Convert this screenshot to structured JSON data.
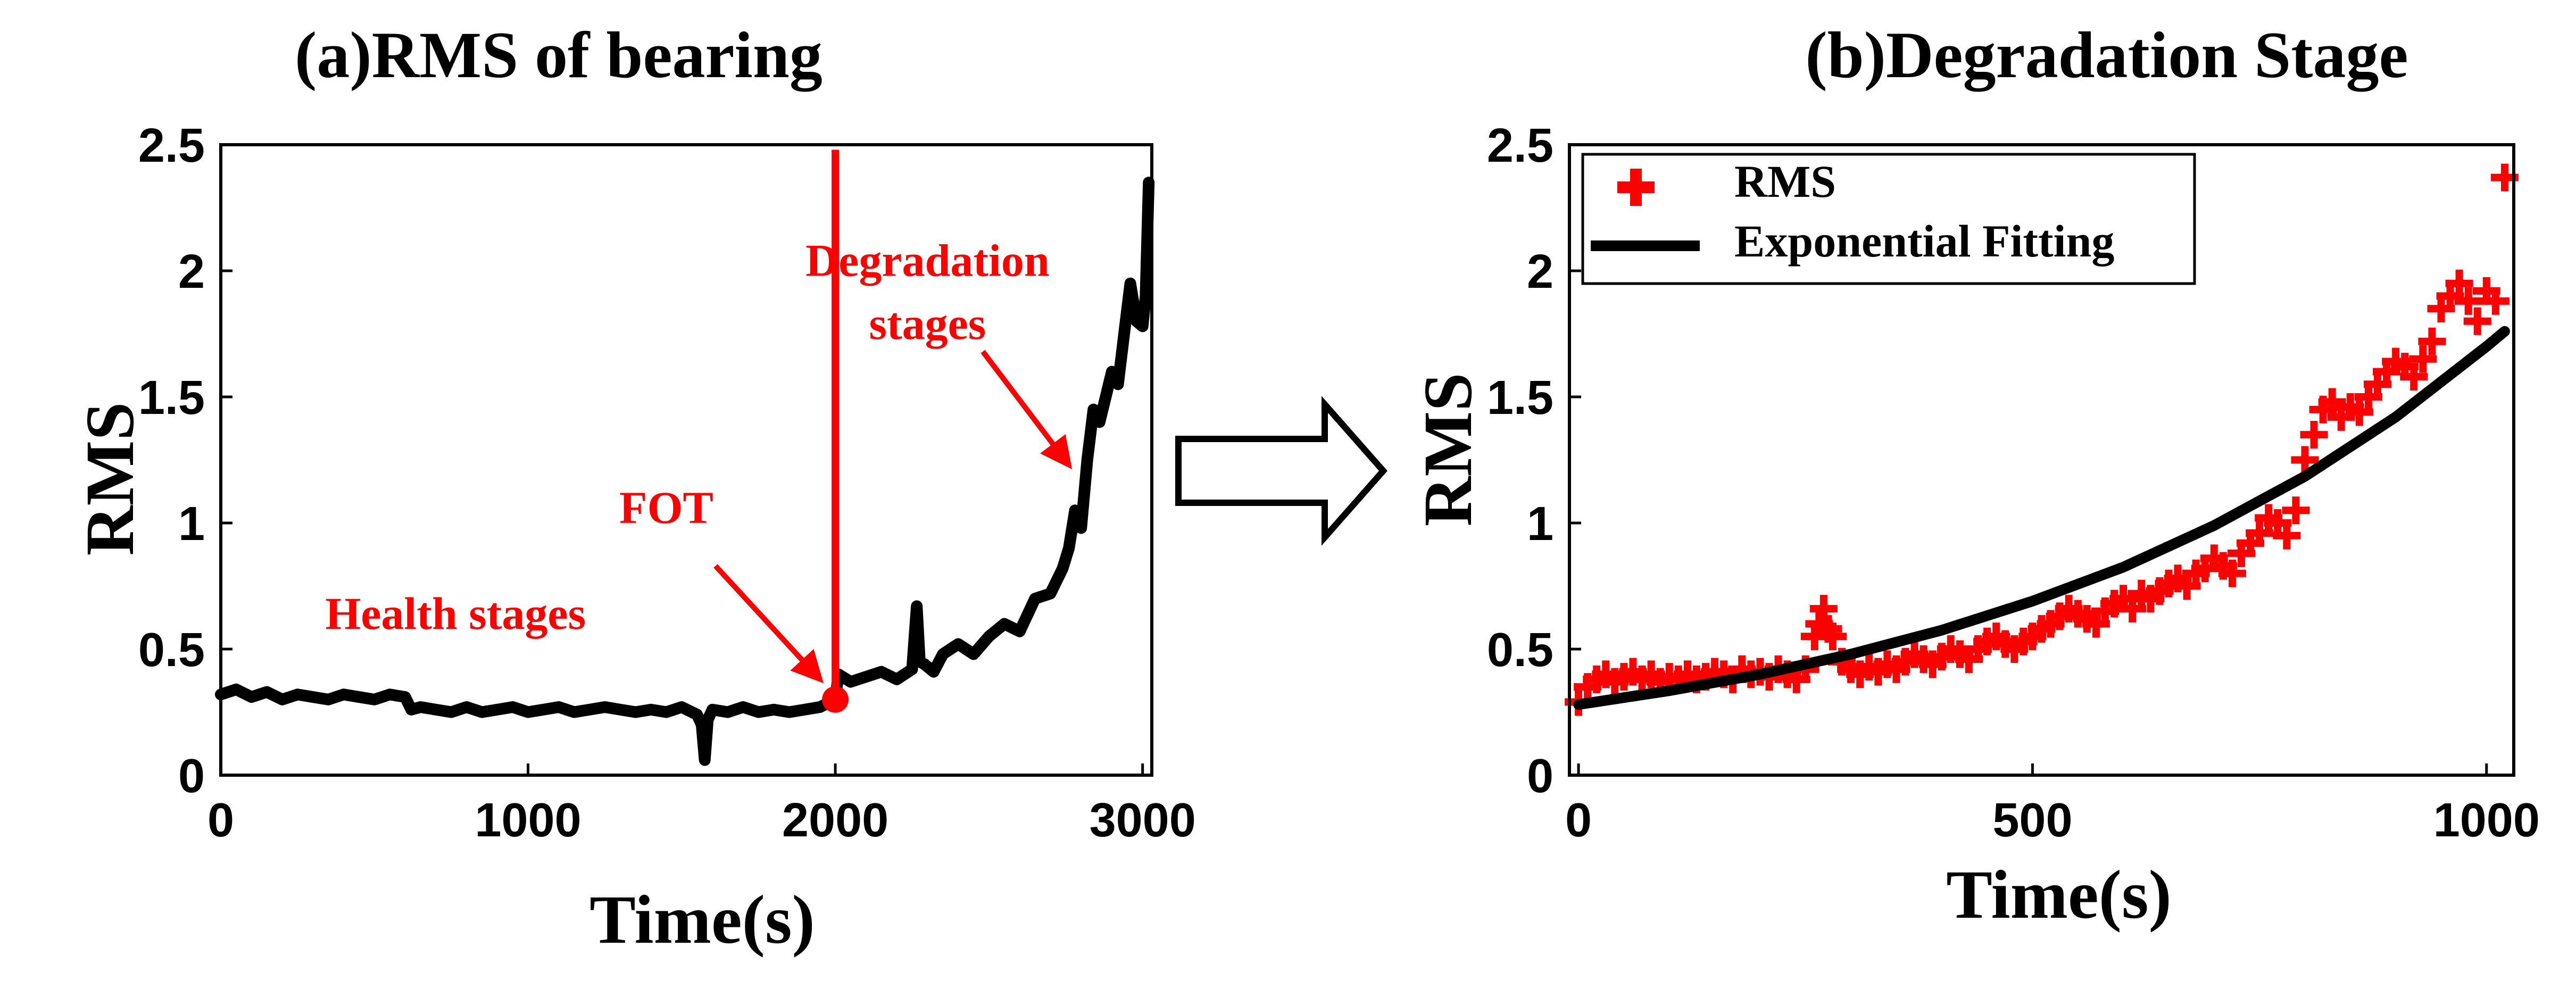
{
  "colors": {
    "data_line": "#000000",
    "marker": "#ff0000",
    "annotation": "#ff0000",
    "arrow_outline": "#000000"
  },
  "chart_data": [
    {
      "type": "line",
      "title": "(a)RMS of bearing",
      "xlabel": "Time(s)",
      "ylabel": "RMS",
      "xlim": [
        0,
        3030
      ],
      "ylim": [
        0,
        2.5
      ],
      "xticks": [
        0,
        1000,
        2000,
        3000
      ],
      "xtick_labels": [
        "0",
        "1000",
        "2000",
        "3000"
      ],
      "yticks": [
        0,
        0.5,
        1,
        1.5,
        2,
        2.5
      ],
      "ytick_labels": [
        "0",
        "0.5",
        "1",
        "1.5",
        "2",
        "2.5"
      ],
      "grid": false,
      "series": [
        {
          "name": "RMS",
          "x": [
            0,
            50,
            100,
            150,
            200,
            250,
            300,
            350,
            400,
            450,
            500,
            550,
            600,
            620,
            650,
            700,
            750,
            800,
            850,
            900,
            950,
            1000,
            1050,
            1100,
            1150,
            1200,
            1250,
            1300,
            1350,
            1400,
            1450,
            1500,
            1550,
            1565,
            1575,
            1585,
            1600,
            1650,
            1700,
            1750,
            1800,
            1850,
            1900,
            1950,
            2000,
            2010,
            2050,
            2100,
            2150,
            2200,
            2250,
            2265,
            2275,
            2290,
            2320,
            2350,
            2400,
            2450,
            2500,
            2550,
            2600,
            2650,
            2700,
            2740,
            2760,
            2780,
            2800,
            2820,
            2840,
            2860,
            2880,
            2900,
            2920,
            2940,
            2960,
            2980,
            3000,
            3010,
            3020
          ],
          "y": [
            0.32,
            0.34,
            0.31,
            0.33,
            0.3,
            0.32,
            0.31,
            0.3,
            0.32,
            0.31,
            0.3,
            0.32,
            0.31,
            0.26,
            0.27,
            0.26,
            0.25,
            0.27,
            0.25,
            0.26,
            0.27,
            0.25,
            0.26,
            0.27,
            0.25,
            0.26,
            0.27,
            0.26,
            0.25,
            0.26,
            0.25,
            0.27,
            0.24,
            0.2,
            0.06,
            0.22,
            0.26,
            0.25,
            0.27,
            0.25,
            0.26,
            0.25,
            0.26,
            0.27,
            0.3,
            0.4,
            0.37,
            0.39,
            0.41,
            0.38,
            0.42,
            0.67,
            0.45,
            0.44,
            0.41,
            0.48,
            0.52,
            0.48,
            0.55,
            0.6,
            0.57,
            0.7,
            0.72,
            0.82,
            0.9,
            1.05,
            0.98,
            1.25,
            1.45,
            1.4,
            1.5,
            1.6,
            1.55,
            1.75,
            1.95,
            1.8,
            1.78,
            1.9,
            2.35
          ]
        }
      ],
      "annotations": [
        {
          "text": "Health stages",
          "x": 340,
          "y": 0.58
        },
        {
          "text": "FOT",
          "x": 1450,
          "y": 1.0
        },
        {
          "text": "Degradation",
          "x": 2300,
          "y": 1.98
        },
        {
          "text": "stages",
          "x": 2300,
          "y": 1.73
        }
      ],
      "vertical_line": {
        "x": 2000,
        "y_from": 0.3,
        "y_to": 2.48
      },
      "fot_point": {
        "x": 2000,
        "y": 0.3
      },
      "arrows": [
        {
          "from": [
            1610,
            0.83
          ],
          "to": [
            1950,
            0.38
          ]
        },
        {
          "from": [
            2480,
            1.68
          ],
          "to": [
            2760,
            1.23
          ]
        }
      ]
    },
    {
      "type": "scatter",
      "title": "(b)Degradation Stage",
      "xlabel": "Time(s)",
      "ylabel": "RMS",
      "xlim": [
        -10,
        1030
      ],
      "ylim": [
        0,
        2.5
      ],
      "xticks": [
        0,
        500,
        1000
      ],
      "xtick_labels": [
        "0",
        "500",
        "1000"
      ],
      "yticks": [
        0,
        0.5,
        1,
        1.5,
        2,
        2.5
      ],
      "ytick_labels": [
        "0",
        "0.5",
        "1",
        "1.5",
        "2",
        "2.5"
      ],
      "grid": false,
      "legend": {
        "position": "top-left",
        "entries": [
          "RMS",
          "Exponential Fitting"
        ]
      },
      "series": [
        {
          "name": "RMS",
          "marker": "+",
          "x": [
            0,
            10,
            20,
            30,
            40,
            50,
            60,
            70,
            80,
            90,
            100,
            110,
            120,
            130,
            140,
            150,
            160,
            170,
            180,
            190,
            200,
            210,
            220,
            230,
            240,
            250,
            260,
            265,
            270,
            275,
            280,
            290,
            300,
            310,
            320,
            330,
            340,
            350,
            360,
            370,
            380,
            390,
            400,
            410,
            420,
            430,
            440,
            450,
            460,
            470,
            480,
            490,
            500,
            510,
            520,
            530,
            540,
            550,
            560,
            570,
            580,
            590,
            600,
            610,
            620,
            630,
            640,
            650,
            660,
            670,
            680,
            690,
            700,
            710,
            720,
            730,
            740,
            750,
            760,
            770,
            780,
            790,
            800,
            810,
            820,
            830,
            840,
            850,
            860,
            870,
            880,
            890,
            900,
            910,
            920,
            930,
            940,
            950,
            960,
            970,
            980,
            990,
            1000,
            1010,
            1020
          ],
          "y": [
            0.29,
            0.35,
            0.38,
            0.4,
            0.37,
            0.39,
            0.41,
            0.38,
            0.4,
            0.37,
            0.39,
            0.38,
            0.4,
            0.38,
            0.39,
            0.41,
            0.4,
            0.38,
            0.42,
            0.4,
            0.41,
            0.39,
            0.42,
            0.4,
            0.38,
            0.42,
            0.55,
            0.6,
            0.66,
            0.58,
            0.55,
            0.45,
            0.42,
            0.4,
            0.43,
            0.41,
            0.44,
            0.42,
            0.45,
            0.48,
            0.46,
            0.44,
            0.47,
            0.5,
            0.48,
            0.46,
            0.5,
            0.53,
            0.55,
            0.52,
            0.5,
            0.53,
            0.55,
            0.58,
            0.6,
            0.63,
            0.66,
            0.64,
            0.62,
            0.6,
            0.65,
            0.68,
            0.7,
            0.66,
            0.72,
            0.7,
            0.73,
            0.76,
            0.78,
            0.75,
            0.8,
            0.82,
            0.86,
            0.83,
            0.8,
            0.88,
            0.92,
            0.96,
            1.02,
            1.0,
            0.95,
            1.05,
            1.25,
            1.35,
            1.45,
            1.48,
            1.42,
            1.46,
            1.44,
            1.5,
            1.55,
            1.6,
            1.64,
            1.62,
            1.58,
            1.65,
            1.72,
            1.85,
            1.9,
            1.95,
            1.88,
            1.8,
            1.92,
            1.88,
            2.37
          ]
        },
        {
          "name": "Exponential Fitting",
          "function": "y = 0.28 * exp(0.0018 * x)",
          "x": [
            0,
            100,
            200,
            300,
            400,
            500,
            600,
            700,
            800,
            900,
            1000,
            1020
          ],
          "y": [
            0.28,
            0.335,
            0.4,
            0.48,
            0.575,
            0.69,
            0.825,
            0.99,
            1.185,
            1.42,
            1.7,
            1.76
          ]
        }
      ]
    }
  ]
}
